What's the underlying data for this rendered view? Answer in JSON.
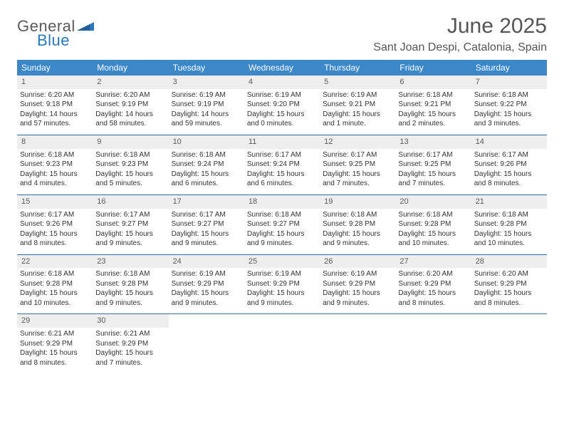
{
  "brand": {
    "word1": "General",
    "word2": "Blue"
  },
  "title": "June 2025",
  "location": "Sant Joan Despi, Catalonia, Spain",
  "colors": {
    "header_bg": "#3b87c8",
    "header_text": "#ffffff",
    "daynum_bg": "#eeeeee",
    "week_divider": "#3b6ea0",
    "text": "#333333",
    "brand_gray": "#5a5a5a",
    "brand_blue": "#2b77bb"
  },
  "weekdays": [
    "Sunday",
    "Monday",
    "Tuesday",
    "Wednesday",
    "Thursday",
    "Friday",
    "Saturday"
  ],
  "weeks": [
    [
      {
        "n": "1",
        "sr": "Sunrise: 6:20 AM",
        "ss": "Sunset: 9:18 PM",
        "d1": "Daylight: 14 hours",
        "d2": "and 57 minutes."
      },
      {
        "n": "2",
        "sr": "Sunrise: 6:20 AM",
        "ss": "Sunset: 9:19 PM",
        "d1": "Daylight: 14 hours",
        "d2": "and 58 minutes."
      },
      {
        "n": "3",
        "sr": "Sunrise: 6:19 AM",
        "ss": "Sunset: 9:19 PM",
        "d1": "Daylight: 14 hours",
        "d2": "and 59 minutes."
      },
      {
        "n": "4",
        "sr": "Sunrise: 6:19 AM",
        "ss": "Sunset: 9:20 PM",
        "d1": "Daylight: 15 hours",
        "d2": "and 0 minutes."
      },
      {
        "n": "5",
        "sr": "Sunrise: 6:19 AM",
        "ss": "Sunset: 9:21 PM",
        "d1": "Daylight: 15 hours",
        "d2": "and 1 minute."
      },
      {
        "n": "6",
        "sr": "Sunrise: 6:18 AM",
        "ss": "Sunset: 9:21 PM",
        "d1": "Daylight: 15 hours",
        "d2": "and 2 minutes."
      },
      {
        "n": "7",
        "sr": "Sunrise: 6:18 AM",
        "ss": "Sunset: 9:22 PM",
        "d1": "Daylight: 15 hours",
        "d2": "and 3 minutes."
      }
    ],
    [
      {
        "n": "8",
        "sr": "Sunrise: 6:18 AM",
        "ss": "Sunset: 9:23 PM",
        "d1": "Daylight: 15 hours",
        "d2": "and 4 minutes."
      },
      {
        "n": "9",
        "sr": "Sunrise: 6:18 AM",
        "ss": "Sunset: 9:23 PM",
        "d1": "Daylight: 15 hours",
        "d2": "and 5 minutes."
      },
      {
        "n": "10",
        "sr": "Sunrise: 6:18 AM",
        "ss": "Sunset: 9:24 PM",
        "d1": "Daylight: 15 hours",
        "d2": "and 6 minutes."
      },
      {
        "n": "11",
        "sr": "Sunrise: 6:17 AM",
        "ss": "Sunset: 9:24 PM",
        "d1": "Daylight: 15 hours",
        "d2": "and 6 minutes."
      },
      {
        "n": "12",
        "sr": "Sunrise: 6:17 AM",
        "ss": "Sunset: 9:25 PM",
        "d1": "Daylight: 15 hours",
        "d2": "and 7 minutes."
      },
      {
        "n": "13",
        "sr": "Sunrise: 6:17 AM",
        "ss": "Sunset: 9:25 PM",
        "d1": "Daylight: 15 hours",
        "d2": "and 7 minutes."
      },
      {
        "n": "14",
        "sr": "Sunrise: 6:17 AM",
        "ss": "Sunset: 9:26 PM",
        "d1": "Daylight: 15 hours",
        "d2": "and 8 minutes."
      }
    ],
    [
      {
        "n": "15",
        "sr": "Sunrise: 6:17 AM",
        "ss": "Sunset: 9:26 PM",
        "d1": "Daylight: 15 hours",
        "d2": "and 8 minutes."
      },
      {
        "n": "16",
        "sr": "Sunrise: 6:17 AM",
        "ss": "Sunset: 9:27 PM",
        "d1": "Daylight: 15 hours",
        "d2": "and 9 minutes."
      },
      {
        "n": "17",
        "sr": "Sunrise: 6:17 AM",
        "ss": "Sunset: 9:27 PM",
        "d1": "Daylight: 15 hours",
        "d2": "and 9 minutes."
      },
      {
        "n": "18",
        "sr": "Sunrise: 6:18 AM",
        "ss": "Sunset: 9:27 PM",
        "d1": "Daylight: 15 hours",
        "d2": "and 9 minutes."
      },
      {
        "n": "19",
        "sr": "Sunrise: 6:18 AM",
        "ss": "Sunset: 9:28 PM",
        "d1": "Daylight: 15 hours",
        "d2": "and 9 minutes."
      },
      {
        "n": "20",
        "sr": "Sunrise: 6:18 AM",
        "ss": "Sunset: 9:28 PM",
        "d1": "Daylight: 15 hours",
        "d2": "and 10 minutes."
      },
      {
        "n": "21",
        "sr": "Sunrise: 6:18 AM",
        "ss": "Sunset: 9:28 PM",
        "d1": "Daylight: 15 hours",
        "d2": "and 10 minutes."
      }
    ],
    [
      {
        "n": "22",
        "sr": "Sunrise: 6:18 AM",
        "ss": "Sunset: 9:28 PM",
        "d1": "Daylight: 15 hours",
        "d2": "and 10 minutes."
      },
      {
        "n": "23",
        "sr": "Sunrise: 6:18 AM",
        "ss": "Sunset: 9:28 PM",
        "d1": "Daylight: 15 hours",
        "d2": "and 9 minutes."
      },
      {
        "n": "24",
        "sr": "Sunrise: 6:19 AM",
        "ss": "Sunset: 9:29 PM",
        "d1": "Daylight: 15 hours",
        "d2": "and 9 minutes."
      },
      {
        "n": "25",
        "sr": "Sunrise: 6:19 AM",
        "ss": "Sunset: 9:29 PM",
        "d1": "Daylight: 15 hours",
        "d2": "and 9 minutes."
      },
      {
        "n": "26",
        "sr": "Sunrise: 6:19 AM",
        "ss": "Sunset: 9:29 PM",
        "d1": "Daylight: 15 hours",
        "d2": "and 9 minutes."
      },
      {
        "n": "27",
        "sr": "Sunrise: 6:20 AM",
        "ss": "Sunset: 9:29 PM",
        "d1": "Daylight: 15 hours",
        "d2": "and 8 minutes."
      },
      {
        "n": "28",
        "sr": "Sunrise: 6:20 AM",
        "ss": "Sunset: 9:29 PM",
        "d1": "Daylight: 15 hours",
        "d2": "and 8 minutes."
      }
    ],
    [
      {
        "n": "29",
        "sr": "Sunrise: 6:21 AM",
        "ss": "Sunset: 9:29 PM",
        "d1": "Daylight: 15 hours",
        "d2": "and 8 minutes."
      },
      {
        "n": "30",
        "sr": "Sunrise: 6:21 AM",
        "ss": "Sunset: 9:29 PM",
        "d1": "Daylight: 15 hours",
        "d2": "and 7 minutes."
      },
      null,
      null,
      null,
      null,
      null
    ]
  ]
}
